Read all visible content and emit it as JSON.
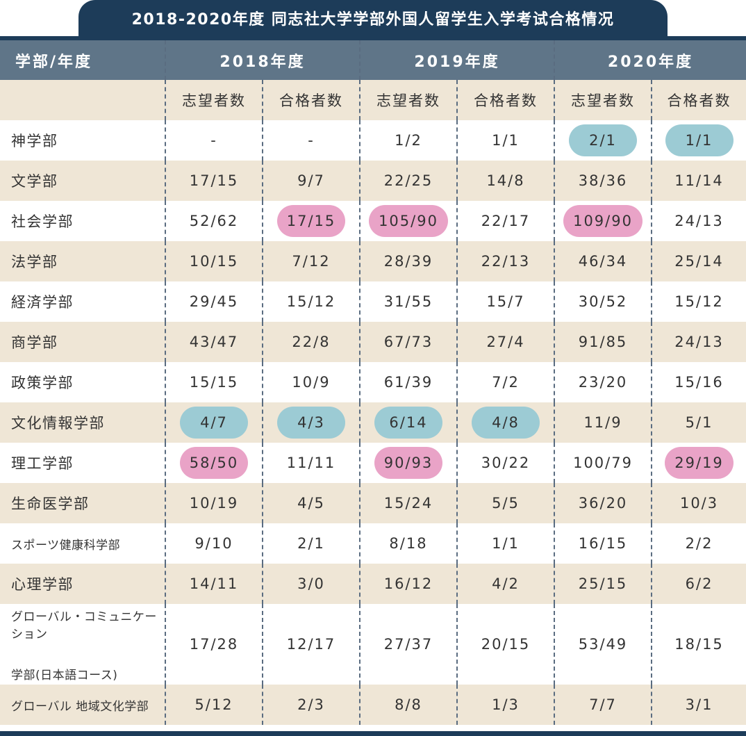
{
  "title": "2018-2020年度 同志社大学学部外国人留学生入学考试合格情况",
  "header": {
    "corner": "学部/年度",
    "years": [
      "2018年度",
      "2019年度",
      "2020年度"
    ],
    "sub": [
      "志望者数",
      "合格者数",
      "志望者数",
      "合格者数",
      "志望者数",
      "合格者数"
    ]
  },
  "colors": {
    "dark_navy": "#1d3c59",
    "header_blue": "#5f7588",
    "beige": "#efe6d6",
    "highlight_blue": "#9ccbd4",
    "highlight_pink": "#e9a3c7"
  },
  "rows": [
    {
      "name": "神学部",
      "cells": [
        "-",
        "-",
        "1/2",
        "1/1",
        "2/1",
        "1/1"
      ],
      "hl": [
        "",
        "",
        "",
        "",
        "blue",
        "blue"
      ]
    },
    {
      "name": "文学部",
      "cells": [
        "17/15",
        "9/7",
        "22/25",
        "14/8",
        "38/36",
        "11/14"
      ],
      "hl": [
        "",
        "",
        "",
        "",
        "",
        ""
      ]
    },
    {
      "name": "社会学部",
      "cells": [
        "52/62",
        "17/15",
        "105/90",
        "22/17",
        "109/90",
        "24/13"
      ],
      "hl": [
        "",
        "pink",
        "pink",
        "",
        "pink",
        ""
      ]
    },
    {
      "name": "法学部",
      "cells": [
        "10/15",
        "7/12",
        "28/39",
        "22/13",
        "46/34",
        "25/14"
      ],
      "hl": [
        "",
        "",
        "",
        "",
        "",
        ""
      ]
    },
    {
      "name": "経済学部",
      "cells": [
        "29/45",
        "15/12",
        "31/55",
        "15/7",
        "30/52",
        "15/12"
      ],
      "hl": [
        "",
        "",
        "",
        "",
        "",
        ""
      ]
    },
    {
      "name": "商学部",
      "cells": [
        "43/47",
        "22/8",
        "67/73",
        "27/4",
        "91/85",
        "24/13"
      ],
      "hl": [
        "",
        "",
        "",
        "",
        "",
        ""
      ]
    },
    {
      "name": "政策学部",
      "cells": [
        "15/15",
        "10/9",
        "61/39",
        "7/2",
        "23/20",
        "15/16"
      ],
      "hl": [
        "",
        "",
        "",
        "",
        "",
        ""
      ]
    },
    {
      "name": "文化情報学部",
      "cells": [
        "4/7",
        "4/3",
        "6/14",
        "4/8",
        "11/9",
        "5/1"
      ],
      "hl": [
        "blue",
        "blue",
        "blue",
        "blue",
        "",
        ""
      ]
    },
    {
      "name": "理工学部",
      "cells": [
        "58/50",
        "11/11",
        "90/93",
        "30/22",
        "100/79",
        "29/19"
      ],
      "hl": [
        "pink",
        "",
        "pink",
        "",
        "",
        "pink"
      ]
    },
    {
      "name": "生命医学部",
      "cells": [
        "10/19",
        "4/5",
        "15/24",
        "5/5",
        "36/20",
        "10/3"
      ],
      "hl": [
        "",
        "",
        "",
        "",
        "",
        ""
      ]
    },
    {
      "name": "スポーツ健康科学部",
      "cells": [
        "9/10",
        "2/1",
        "8/18",
        "1/1",
        "16/15",
        "2/2"
      ],
      "hl": [
        "",
        "",
        "",
        "",
        "",
        ""
      ]
    },
    {
      "name": "心理学部",
      "cells": [
        "14/11",
        "3/0",
        "16/12",
        "4/2",
        "25/15",
        "6/2"
      ],
      "hl": [
        "",
        "",
        "",
        "",
        "",
        ""
      ]
    },
    {
      "name": "グローバル・コミュニケーション",
      "name2": "学部(日本語コース)",
      "cells": [
        "17/28",
        "12/17",
        "27/37",
        "20/15",
        "53/49",
        "18/15"
      ],
      "hl": [
        "",
        "",
        "",
        "",
        "",
        ""
      ]
    },
    {
      "name": "グローバル 地域文化学部",
      "cells": [
        "5/12",
        "2/3",
        "8/8",
        "1/3",
        "7/7",
        "3/1"
      ],
      "hl": [
        "",
        "",
        "",
        "",
        "",
        ""
      ]
    }
  ]
}
